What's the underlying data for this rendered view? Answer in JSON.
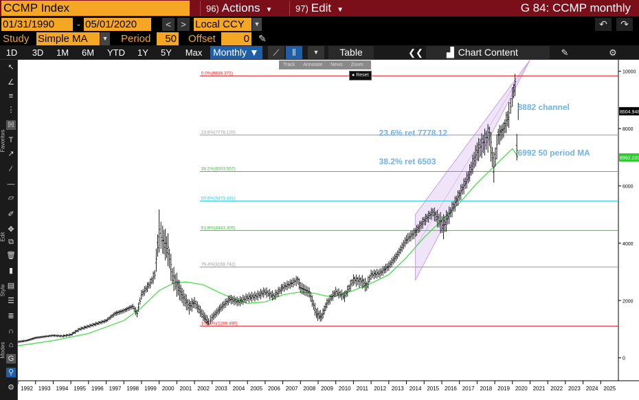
{
  "header": {
    "ticker": "CCMP Index",
    "actions_num": "96)",
    "actions_label": "Actions",
    "edit_num": "97)",
    "edit_label": "Edit",
    "window_title": "G 84: CCMP monthly"
  },
  "toolbar2": {
    "start_date": "01/31/1990",
    "dash": "-",
    "end_date": "05/01/2020",
    "prev": "<",
    "next": ">",
    "currency": "Local CCY",
    "undo": "↶",
    "redo": "↷"
  },
  "toolbar3": {
    "study_label": "Study",
    "study_value": "Simple MA",
    "period_label": "Period",
    "period_value": "50",
    "offset_label": "Offset",
    "offset_value": "0"
  },
  "toolbar4": {
    "ranges": [
      "1D",
      "3D",
      "1M",
      "6M",
      "YTD",
      "1Y",
      "5Y",
      "Max"
    ],
    "frequency": "Monthly ▼",
    "table": "Table",
    "collapse": "❮❮",
    "chart_content": "Chart Content"
  },
  "mini_toolbar": {
    "items": [
      "Track",
      "Annotate",
      "News",
      "Zoom"
    ],
    "reset": "Reset"
  },
  "side_labels": [
    "Favorites",
    "Edit",
    "Style",
    "Modes"
  ],
  "colors": {
    "accent": "#f5a623",
    "header_bg": "#7a0f1a",
    "price": "#000000",
    "ma": "#3ddc3d",
    "fib_red": "#e02020",
    "fib_grey": "#999999",
    "fib_green": "#2ecc2e",
    "fib_cyan": "#20c8e0",
    "annotation": "#6fb3e8",
    "channel": "#c8a0e8"
  },
  "chart_data": {
    "type": "bar",
    "title": "",
    "xlabel": "",
    "ylabel": "",
    "ylim": [
      -800,
      10400
    ],
    "xlim": [
      1992.0,
      2026.0
    ],
    "yticks": [
      0,
      2000,
      4000,
      6000,
      8000,
      10000
    ],
    "xticks": [
      "1992",
      "1993",
      "1994",
      "1995",
      "1996",
      "1997",
      "1998",
      "1999",
      "2000",
      "2001",
      "2002",
      "2003",
      "2004",
      "2005",
      "2006",
      "2007",
      "2008",
      "2009",
      "2010",
      "2011",
      "2012",
      "2013",
      "2014",
      "2015",
      "2016",
      "2017",
      "2018",
      "2019",
      "2020",
      "2021",
      "2022",
      "2023",
      "2024",
      "2025"
    ],
    "price_series": {
      "name": "CCMP Index",
      "x": [
        1992.0,
        1992.5,
        1993.0,
        1993.5,
        1994.0,
        1994.5,
        1995.0,
        1995.5,
        1996.0,
        1996.5,
        1997.0,
        1997.5,
        1998.0,
        1998.5,
        1998.75,
        1999.0,
        1999.5,
        1999.75,
        2000.0,
        2000.2,
        2000.5,
        2000.75,
        2001.0,
        2001.3,
        2001.7,
        2002.0,
        2002.5,
        2002.8,
        2003.0,
        2003.5,
        2004.0,
        2004.5,
        2005.0,
        2005.5,
        2006.0,
        2006.5,
        2007.0,
        2007.5,
        2007.85,
        2008.0,
        2008.5,
        2008.9,
        2009.2,
        2009.5,
        2010.0,
        2010.5,
        2011.0,
        2011.5,
        2011.75,
        2012.0,
        2012.5,
        2013.0,
        2013.5,
        2014.0,
        2014.5,
        2015.0,
        2015.5,
        2016.1,
        2016.5,
        2017.0,
        2017.5,
        2018.0,
        2018.7,
        2018.95,
        2019.2,
        2019.5,
        2019.8,
        2020.0,
        2020.15,
        2020.25,
        2020.33
      ],
      "y": [
        560,
        600,
        700,
        740,
        780,
        760,
        800,
        1000,
        1100,
        1200,
        1300,
        1550,
        1650,
        1800,
        1550,
        2200,
        2600,
        2900,
        4400,
        4100,
        3800,
        2900,
        2600,
        2200,
        1800,
        1950,
        1450,
        1200,
        1400,
        1750,
        2050,
        1950,
        2100,
        2150,
        2300,
        2150,
        2450,
        2600,
        2750,
        2450,
        2300,
        1550,
        1400,
        1900,
        2300,
        2150,
        2750,
        2700,
        2500,
        2900,
        2950,
        3200,
        3600,
        4100,
        4400,
        4800,
        5100,
        4600,
        5100,
        5700,
        6300,
        7200,
        7900,
        6600,
        7800,
        8000,
        8500,
        9100,
        9600,
        7300,
        8600
      ],
      "lows": [
        510,
        560,
        650,
        700,
        740,
        710,
        760,
        940,
        1040,
        1130,
        1230,
        1450,
        1560,
        1700,
        1400,
        2050,
        2450,
        2700,
        3800,
        3650,
        3300,
        2500,
        2200,
        1900,
        1550,
        1750,
        1300,
        1110,
        1260,
        1600,
        1900,
        1800,
        1950,
        2000,
        2150,
        2000,
        2300,
        2450,
        2550,
        2250,
        2100,
        1350,
        1270,
        1750,
        2150,
        1980,
        2550,
        2450,
        2300,
        2750,
        2800,
        3050,
        3450,
        3950,
        4200,
        4600,
        4900,
        4200,
        4850,
        5450,
        6050,
        6850,
        7300,
        6200,
        7400,
        7700,
        8100,
        8800,
        9200,
        6800,
        8300
      ],
      "highs": [
        600,
        640,
        740,
        780,
        820,
        800,
        860,
        1060,
        1160,
        1260,
        1360,
        1620,
        1720,
        1880,
        1700,
        2350,
        2750,
        3100,
        5050,
        4600,
        4250,
        3200,
        2900,
        2450,
        2000,
        2100,
        1650,
        1400,
        1550,
        1900,
        2200,
        2100,
        2250,
        2300,
        2450,
        2300,
        2600,
        2750,
        2860,
        2650,
        2450,
        1750,
        1600,
        2050,
        2450,
        2300,
        2880,
        2850,
        2700,
        3050,
        3100,
        3350,
        3750,
        4300,
        4550,
        4950,
        5250,
        4950,
        5300,
        5900,
        6550,
        7550,
        8150,
        7100,
        8050,
        8200,
        8850,
        9400,
        9838,
        7900,
        8900
      ]
    },
    "ma_series": {
      "name": "",
      "x": [
        1992.0,
        1994.0,
        1996.0,
        1998.0,
        1999.0,
        2000.0,
        2000.8,
        2001.5,
        2002.5,
        2003.5,
        2004.5,
        2005.0,
        2006.0,
        2007.0,
        2008.0,
        2008.8,
        2009.5,
        2010.0,
        2011.0,
        2012.0,
        2013.0,
        2014.0,
        2015.0,
        2016.0,
        2017.0,
        2018.0,
        2019.0,
        2019.5,
        2020.0,
        2020.33
      ],
      "y": [
        420,
        600,
        850,
        1300,
        1750,
        2350,
        2600,
        2650,
        2550,
        2250,
        2000,
        1900,
        1950,
        2200,
        2300,
        2250,
        2150,
        2150,
        2350,
        2600,
        2900,
        3500,
        4200,
        4800,
        5400,
        6100,
        6700,
        7000,
        7300,
        6992
      ]
    },
    "fib_levels": [
      {
        "label": "0.0%(9838.372)",
        "value": 9838.372,
        "color": "#e02020"
      },
      {
        "label": "23.6%(7778.120)",
        "value": 7778.12,
        "color": "#999999"
      },
      {
        "label": "38.2%(6503.557)",
        "value": 6503.557,
        "color": "#2ecc2e"
      },
      {
        "label": "50.0%(5473.431)",
        "value": 5473.431,
        "color": "#20c8e0"
      },
      {
        "label": "61.8%(4443.305)",
        "value": 4443.305,
        "color": "#2ecc2e"
      },
      {
        "label": "76.4%(3168.742)",
        "value": 3168.742,
        "color": "#999999"
      },
      {
        "label": "100.0%(1108.490)",
        "value": 1108.49,
        "color": "#e02020"
      }
    ],
    "fib_x_start": 2002.3,
    "channel": {
      "lower_start": [
        2014.5,
        2700
      ],
      "lower_end": [
        2021.0,
        11000
      ],
      "width": 2300
    },
    "annotations": [
      {
        "text": "8882 channel",
        "x": 2020.3,
        "y": 8650
      },
      {
        "text": "23.6% ret 7778.12",
        "x": 2012.45,
        "y": 7750
      },
      {
        "text": "38.2% ret 6503",
        "x": 2012.45,
        "y": 6750
      },
      {
        "text": "6992 50  period MA",
        "x": 2020.3,
        "y": 7050
      }
    ],
    "last_price_labels": [
      {
        "text": "8604.948",
        "value": 8604.948,
        "color": "#000000"
      },
      {
        "text": "6992.220",
        "value": 6992.22,
        "color": "#2ecc2e"
      }
    ],
    "grid": false
  }
}
